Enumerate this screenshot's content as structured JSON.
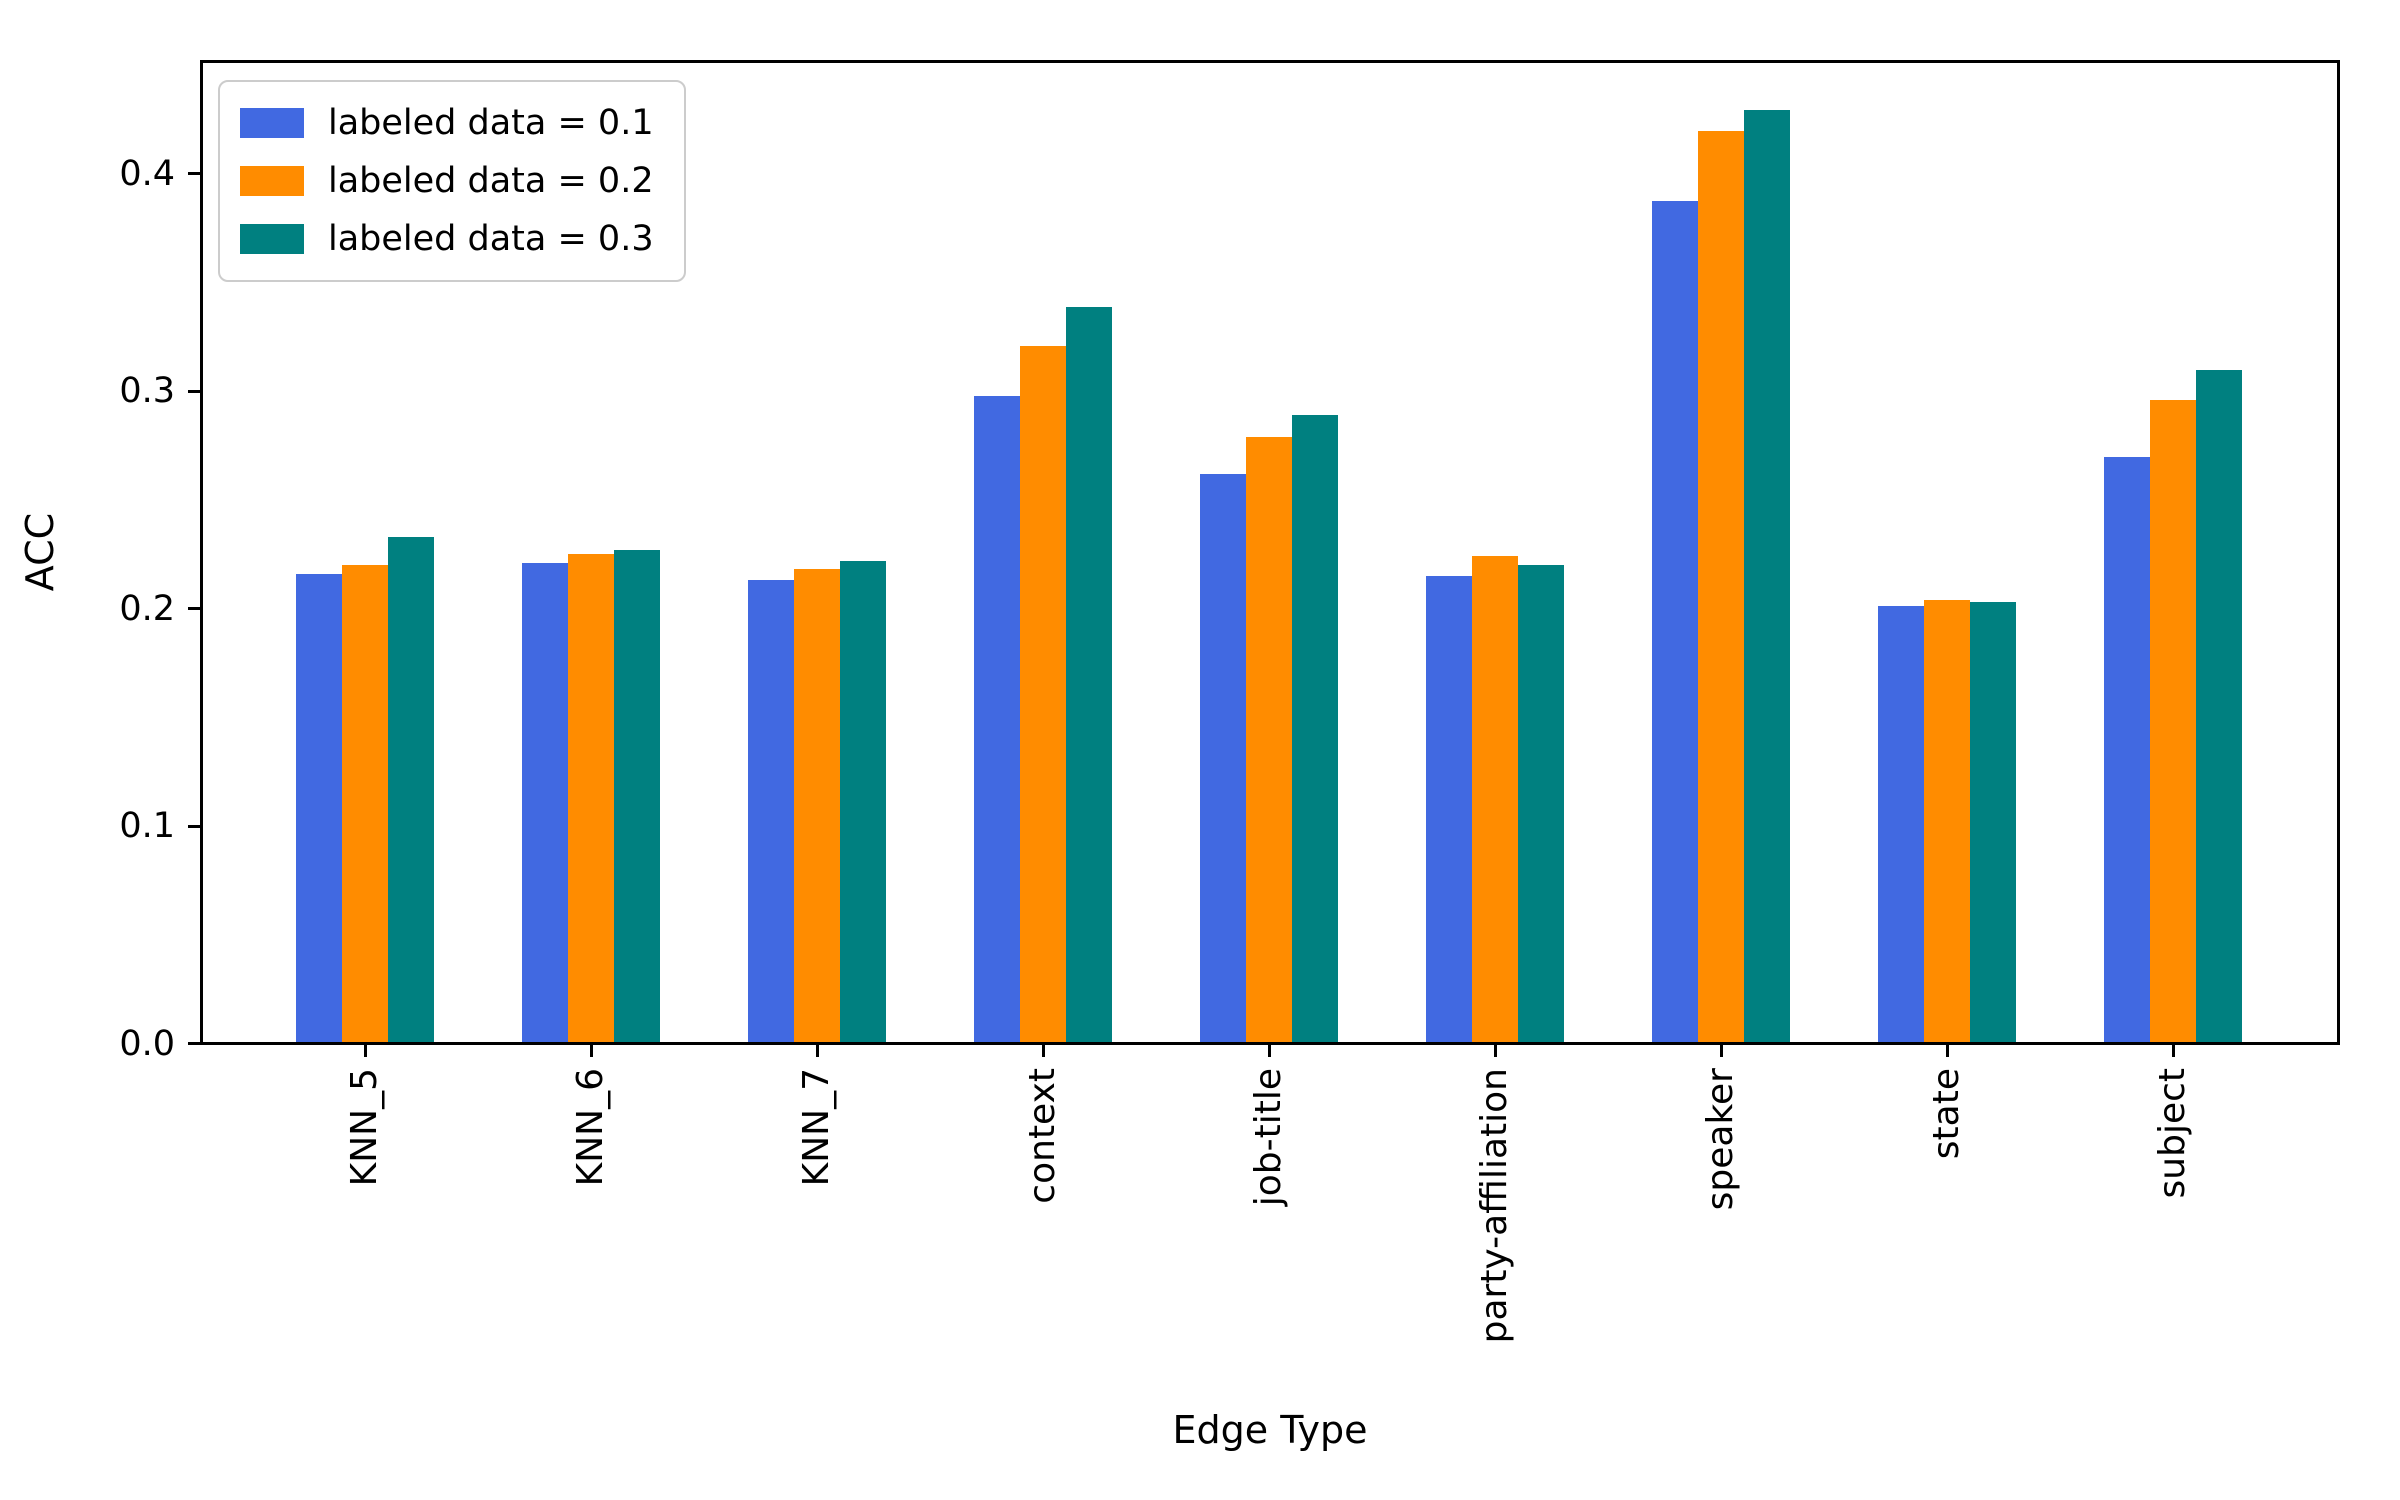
{
  "chart_data": {
    "type": "bar",
    "title": "",
    "xlabel": "Edge Type",
    "ylabel": "ACC",
    "categories": [
      "KNN_5",
      "KNN_6",
      "KNN_7",
      "context",
      "job-title",
      "party-affiliation",
      "speaker",
      "state",
      "subject"
    ],
    "series": [
      {
        "name": "labeled data = 0.1",
        "color": "#4169E1",
        "values": [
          0.216,
          0.221,
          0.213,
          0.298,
          0.262,
          0.215,
          0.388,
          0.201,
          0.27
        ]
      },
      {
        "name": "labeled data = 0.2",
        "color": "#FF8C00",
        "values": [
          0.22,
          0.225,
          0.218,
          0.321,
          0.279,
          0.224,
          0.42,
          0.204,
          0.296
        ]
      },
      {
        "name": "labeled data = 0.3",
        "color": "#008080",
        "values": [
          0.233,
          0.227,
          0.222,
          0.339,
          0.289,
          0.22,
          0.43,
          0.203,
          0.31
        ]
      }
    ],
    "ylim": [
      0,
      0.4515
    ],
    "yticks": [
      0.0,
      0.1,
      0.2,
      0.3,
      0.4
    ],
    "ytick_labels": [
      "0.0",
      "0.1",
      "0.2",
      "0.3",
      "0.4"
    ],
    "legend_position": "upper left",
    "grid": false,
    "axis_color": "#000000",
    "background_color": "#ffffff"
  }
}
